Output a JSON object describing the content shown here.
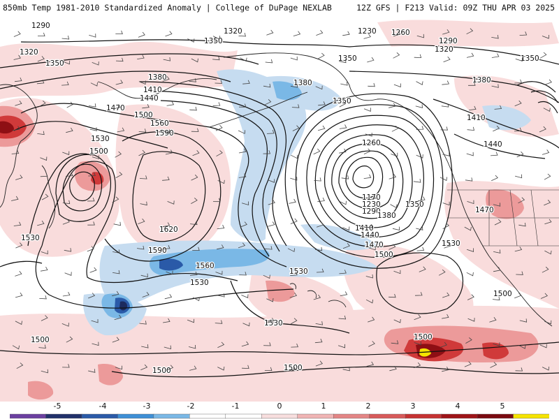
{
  "header": {
    "left_title": "850mb Temp 1981-2010 Standardized Anomaly | College of DuPage NEXLAB",
    "right_title": "12Z GFS | F213 Valid: 09Z THU APR 03 2025"
  },
  "legend": {
    "labels": [
      "-5",
      "-4",
      "-3",
      "-2",
      "-1",
      "0",
      "1",
      "2",
      "3",
      "4",
      "5"
    ],
    "colors": [
      "#6b3fa0",
      "#20306a",
      "#2a5aa8",
      "#3e8fd6",
      "#7ab8e6",
      "#b8d6ef",
      "#dde9f5",
      "#f7dede",
      "#f0b4b4",
      "#e48585",
      "#d85a5a",
      "#c63232",
      "#9e1418",
      "#7a0a10",
      "#f5e400"
    ]
  },
  "map": {
    "fill_colors": {
      "neg_strong": "#2a5aa8",
      "neg_mid": "#7ab8e6",
      "neg_light": "#c6dcf0",
      "pos_light": "#f9dcdc",
      "pos_mid": "#ec9a9a",
      "pos_strong": "#d03a3a",
      "pos_extreme": "#8e0f14",
      "hot_core": "#f5e400",
      "cold_core": "#1c2a5e"
    },
    "contour_labels": [
      {
        "id": "c1290a",
        "text": "1290"
      },
      {
        "id": "c1320a",
        "text": "1320"
      },
      {
        "id": "c1350a",
        "text": "1350"
      },
      {
        "id": "c1320b",
        "text": "1320"
      },
      {
        "id": "c1350b",
        "text": "1350"
      },
      {
        "id": "c1230a",
        "text": "1230"
      },
      {
        "id": "c1260a",
        "text": "1260"
      },
      {
        "id": "c1290b",
        "text": "1290"
      },
      {
        "id": "c1320c",
        "text": "1320"
      },
      {
        "id": "c1350c",
        "text": "1350"
      },
      {
        "id": "c1350d",
        "text": "1350"
      },
      {
        "id": "c1380a",
        "text": "1380"
      },
      {
        "id": "c1380b",
        "text": "1380"
      },
      {
        "id": "c1380c",
        "text": "1380"
      },
      {
        "id": "c1410a",
        "text": "1410"
      },
      {
        "id": "c1440a",
        "text": "1440"
      },
      {
        "id": "c1470a",
        "text": "1470"
      },
      {
        "id": "c1500a",
        "text": "1500"
      },
      {
        "id": "c1530a",
        "text": "1530"
      },
      {
        "id": "c1560a",
        "text": "1560"
      },
      {
        "id": "c1590a",
        "text": "1590"
      },
      {
        "id": "c1500b",
        "text": "1500"
      },
      {
        "id": "c1620a",
        "text": "1620"
      },
      {
        "id": "c1590b",
        "text": "1590"
      },
      {
        "id": "c1560b",
        "text": "1560"
      },
      {
        "id": "c1530b",
        "text": "1530"
      },
      {
        "id": "c1530c",
        "text": "1530"
      },
      {
        "id": "c1350e",
        "text": "1350"
      },
      {
        "id": "c1260b",
        "text": "1260"
      },
      {
        "id": "c1170a",
        "text": "1170"
      },
      {
        "id": "c1230b",
        "text": "1230"
      },
      {
        "id": "c1290c",
        "text": "1290"
      },
      {
        "id": "c1350f",
        "text": "1350"
      },
      {
        "id": "c1380d",
        "text": "1380"
      },
      {
        "id": "c1410b",
        "text": "1410"
      },
      {
        "id": "c1440b",
        "text": "1440"
      },
      {
        "id": "c1470b",
        "text": "1470"
      },
      {
        "id": "c1500c",
        "text": "1500"
      },
      {
        "id": "c1530d",
        "text": "1530"
      },
      {
        "id": "c1530e",
        "text": "1530"
      },
      {
        "id": "c1410c",
        "text": "1410"
      },
      {
        "id": "c1440c",
        "text": "1440"
      },
      {
        "id": "c1470c",
        "text": "1470"
      },
      {
        "id": "c1500d",
        "text": "1500"
      },
      {
        "id": "c1530f",
        "text": "1530"
      },
      {
        "id": "c1500e",
        "text": "1500"
      },
      {
        "id": "c1500f",
        "text": "1500"
      },
      {
        "id": "c1500g",
        "text": "1500"
      },
      {
        "id": "c1500h",
        "text": "1500"
      }
    ]
  }
}
